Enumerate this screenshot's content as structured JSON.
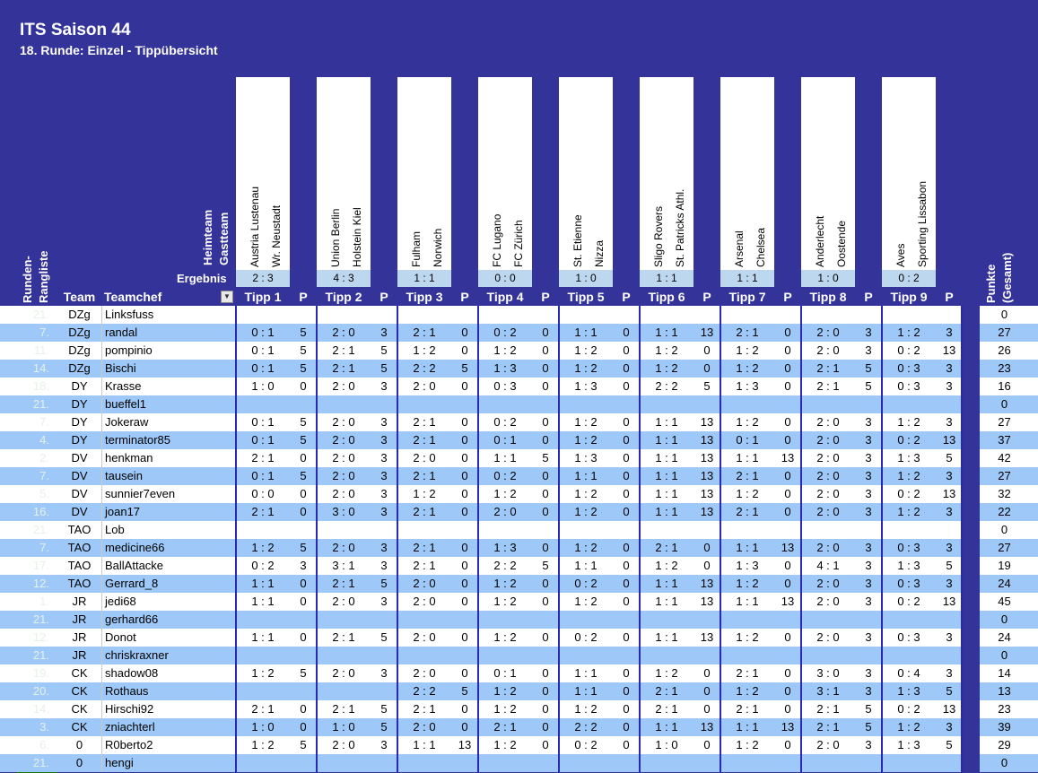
{
  "title": "ITS Saison 44",
  "subtitle": "18. Runde: Einzel - Tippübersicht",
  "header_labels": {
    "heimteam": "Heimteam",
    "gastteam": "Gastteam",
    "ergebnis": "Ergebnis",
    "rangliste": "Runden-\nRangliste",
    "team": "Team",
    "teamchef": "Teamchef",
    "p": "P",
    "punkte": "Punkte\n(Gesamt)"
  },
  "matches": [
    {
      "tipp": "Tipp 1",
      "home": "Austria Lustenau",
      "away": "Wr. Neustadt",
      "result": "2 : 3"
    },
    {
      "tipp": "Tipp 2",
      "home": "Union Berlin",
      "away": "Holstein Kiel",
      "result": "4 : 3"
    },
    {
      "tipp": "Tipp 3",
      "home": "Fulham",
      "away": "Norwich",
      "result": "1 : 1"
    },
    {
      "tipp": "Tipp 4",
      "home": "FC Lugano",
      "away": "FC Zürich",
      "result": "0 : 0"
    },
    {
      "tipp": "Tipp 5",
      "home": "St. Etienne",
      "away": "Nizza",
      "result": "1 : 0"
    },
    {
      "tipp": "Tipp 6",
      "home": "Sligo Rovers",
      "away": "St. Patricks Athl.",
      "result": "1 : 1"
    },
    {
      "tipp": "Tipp 7",
      "home": "Arsenal",
      "away": "Chelsea",
      "result": "1 : 1"
    },
    {
      "tipp": "Tipp 8",
      "home": "Anderlecht",
      "away": "Oostende",
      "result": "1 : 0"
    },
    {
      "tipp": "Tipp 9",
      "home": "Aves",
      "away": "Sporting Lissabon",
      "result": "0 : 2"
    }
  ],
  "rows": [
    {
      "rank": "21.",
      "team": "DZg",
      "chef": "Linksfuss",
      "tips": [
        "",
        "",
        "",
        "",
        "",
        "",
        "",
        "",
        ""
      ],
      "points": [
        "",
        "",
        "",
        "",
        "",
        "",
        "",
        "",
        ""
      ],
      "total": "0"
    },
    {
      "rank": "7.",
      "team": "DZg",
      "chef": "randal",
      "tips": [
        "0 : 1",
        "2 : 0",
        "2 : 1",
        "0 : 2",
        "1 : 1",
        "1 : 1",
        "2 : 1",
        "2 : 0",
        "1 : 2"
      ],
      "points": [
        "5",
        "3",
        "0",
        "0",
        "0",
        "13",
        "0",
        "3",
        "3"
      ],
      "total": "27"
    },
    {
      "rank": "11.",
      "team": "DZg",
      "chef": "pompinio",
      "tips": [
        "0 : 1",
        "2 : 1",
        "1 : 2",
        "1 : 2",
        "1 : 2",
        "1 : 2",
        "1 : 2",
        "2 : 0",
        "0 : 2"
      ],
      "points": [
        "5",
        "5",
        "0",
        "0",
        "0",
        "0",
        "0",
        "3",
        "13"
      ],
      "total": "26"
    },
    {
      "rank": "14.",
      "team": "DZg",
      "chef": "Bischi",
      "tips": [
        "0 : 1",
        "2 : 1",
        "2 : 2",
        "1 : 3",
        "1 : 2",
        "1 : 2",
        "1 : 2",
        "2 : 1",
        "0 : 3"
      ],
      "points": [
        "5",
        "5",
        "5",
        "0",
        "0",
        "0",
        "0",
        "5",
        "3"
      ],
      "total": "23"
    },
    {
      "rank": "18.",
      "team": "DY",
      "chef": "Krasse",
      "tips": [
        "1 : 0",
        "2 : 0",
        "2 : 0",
        "0 : 3",
        "1 : 3",
        "2 : 2",
        "1 : 3",
        "2 : 1",
        "0 : 3"
      ],
      "points": [
        "0",
        "3",
        "0",
        "0",
        "0",
        "5",
        "0",
        "5",
        "3"
      ],
      "total": "16"
    },
    {
      "rank": "21.",
      "team": "DY",
      "chef": "bueffel1",
      "tips": [
        "",
        "",
        "",
        "",
        "",
        "",
        "",
        "",
        ""
      ],
      "points": [
        "",
        "",
        "",
        "",
        "",
        "",
        "",
        "",
        ""
      ],
      "total": "0"
    },
    {
      "rank": "7.",
      "team": "DY",
      "chef": "Jokeraw",
      "tips": [
        "0 : 1",
        "2 : 0",
        "2 : 1",
        "0 : 2",
        "1 : 2",
        "1 : 1",
        "1 : 2",
        "2 : 0",
        "1 : 2"
      ],
      "points": [
        "5",
        "3",
        "0",
        "0",
        "0",
        "13",
        "0",
        "3",
        "3"
      ],
      "total": "27"
    },
    {
      "rank": "4.",
      "team": "DY",
      "chef": "terminator85",
      "tips": [
        "0 : 1",
        "2 : 0",
        "2 : 1",
        "0 : 1",
        "1 : 2",
        "1 : 1",
        "0 : 1",
        "2 : 0",
        "0 : 2"
      ],
      "points": [
        "5",
        "3",
        "0",
        "0",
        "0",
        "13",
        "0",
        "3",
        "13"
      ],
      "total": "37"
    },
    {
      "rank": "2.",
      "team": "DV",
      "chef": "henkman",
      "tips": [
        "2 : 1",
        "2 : 0",
        "2 : 0",
        "1 : 1",
        "1 : 3",
        "1 : 1",
        "1 : 1",
        "2 : 0",
        "1 : 3"
      ],
      "points": [
        "0",
        "3",
        "0",
        "5",
        "0",
        "13",
        "13",
        "3",
        "5"
      ],
      "total": "42"
    },
    {
      "rank": "7.",
      "team": "DV",
      "chef": "tausein",
      "tips": [
        "0 : 1",
        "2 : 0",
        "2 : 1",
        "0 : 2",
        "1 : 1",
        "1 : 1",
        "2 : 1",
        "2 : 0",
        "1 : 2"
      ],
      "points": [
        "5",
        "3",
        "0",
        "0",
        "0",
        "13",
        "0",
        "3",
        "3"
      ],
      "total": "27"
    },
    {
      "rank": "5.",
      "team": "DV",
      "chef": "sunnier7even",
      "tips": [
        "0 : 0",
        "2 : 0",
        "1 : 2",
        "1 : 2",
        "1 : 2",
        "1 : 1",
        "1 : 2",
        "2 : 0",
        "0 : 2"
      ],
      "points": [
        "0",
        "3",
        "0",
        "0",
        "0",
        "13",
        "0",
        "3",
        "13"
      ],
      "total": "32"
    },
    {
      "rank": "16.",
      "team": "DV",
      "chef": "joan17",
      "tips": [
        "2 : 1",
        "3 : 0",
        "2 : 1",
        "2 : 0",
        "1 : 2",
        "1 : 1",
        "2 : 1",
        "2 : 0",
        "1 : 2"
      ],
      "points": [
        "0",
        "3",
        "0",
        "0",
        "0",
        "13",
        "0",
        "3",
        "3"
      ],
      "total": "22"
    },
    {
      "rank": "21.",
      "team": "TAO",
      "chef": "Lob",
      "tips": [
        "",
        "",
        "",
        "",
        "",
        "",
        "",
        "",
        ""
      ],
      "points": [
        "",
        "",
        "",
        "",
        "",
        "",
        "",
        "",
        ""
      ],
      "total": "0"
    },
    {
      "rank": "7.",
      "team": "TAO",
      "chef": "medicine66",
      "tips": [
        "1 : 2",
        "2 : 0",
        "2 : 1",
        "1 : 3",
        "1 : 2",
        "2 : 1",
        "1 : 1",
        "2 : 0",
        "0 : 3"
      ],
      "points": [
        "5",
        "3",
        "0",
        "0",
        "0",
        "0",
        "13",
        "3",
        "3"
      ],
      "total": "27"
    },
    {
      "rank": "17.",
      "team": "TAO",
      "chef": "BallAttacke",
      "tips": [
        "0 : 2",
        "3 : 1",
        "2 : 1",
        "2 : 2",
        "1 : 1",
        "1 : 2",
        "1 : 3",
        "4 : 1",
        "1 : 3"
      ],
      "points": [
        "3",
        "3",
        "0",
        "5",
        "0",
        "0",
        "0",
        "3",
        "5"
      ],
      "total": "19"
    },
    {
      "rank": "12.",
      "team": "TAO",
      "chef": "Gerrard_8",
      "tips": [
        "1 : 1",
        "2 : 1",
        "2 : 0",
        "1 : 2",
        "0 : 2",
        "1 : 1",
        "1 : 2",
        "2 : 0",
        "0 : 3"
      ],
      "points": [
        "0",
        "5",
        "0",
        "0",
        "0",
        "13",
        "0",
        "3",
        "3"
      ],
      "total": "24"
    },
    {
      "rank": "1.",
      "team": "JR",
      "chef": "jedi68",
      "tips": [
        "1 : 1",
        "2 : 0",
        "2 : 0",
        "1 : 2",
        "1 : 2",
        "1 : 1",
        "1 : 1",
        "2 : 0",
        "0 : 2"
      ],
      "points": [
        "0",
        "3",
        "0",
        "0",
        "0",
        "13",
        "13",
        "3",
        "13"
      ],
      "total": "45"
    },
    {
      "rank": "21.",
      "team": "JR",
      "chef": "gerhard66",
      "tips": [
        "",
        "",
        "",
        "",
        "",
        "",
        "",
        "",
        ""
      ],
      "points": [
        "",
        "",
        "",
        "",
        "",
        "",
        "",
        "",
        ""
      ],
      "total": "0"
    },
    {
      "rank": "12.",
      "team": "JR",
      "chef": "Donot",
      "tips": [
        "1 : 1",
        "2 : 1",
        "2 : 0",
        "1 : 2",
        "0 : 2",
        "1 : 1",
        "1 : 2",
        "2 : 0",
        "0 : 3"
      ],
      "points": [
        "0",
        "5",
        "0",
        "0",
        "0",
        "13",
        "0",
        "3",
        "3"
      ],
      "total": "24"
    },
    {
      "rank": "21.",
      "team": "JR",
      "chef": "chriskraxner",
      "tips": [
        "",
        "",
        "",
        "",
        "",
        "",
        "",
        "",
        ""
      ],
      "points": [
        "",
        "",
        "",
        "",
        "",
        "",
        "",
        "",
        ""
      ],
      "total": "0"
    },
    {
      "rank": "19.",
      "team": "CK",
      "chef": "shadow08",
      "tips": [
        "1 : 2",
        "2 : 0",
        "2 : 0",
        "0 : 1",
        "1 : 1",
        "1 : 2",
        "2 : 1",
        "3 : 0",
        "0 : 4"
      ],
      "points": [
        "5",
        "3",
        "0",
        "0",
        "0",
        "0",
        "0",
        "3",
        "3"
      ],
      "total": "14"
    },
    {
      "rank": "20.",
      "team": "CK",
      "chef": "Rothaus",
      "tips": [
        "",
        "",
        "2 : 2",
        "1 : 2",
        "1 : 1",
        "2 : 1",
        "1 : 2",
        "3 : 1",
        "1 : 3"
      ],
      "points": [
        "",
        "",
        "5",
        "0",
        "0",
        "0",
        "0",
        "3",
        "5"
      ],
      "total": "13"
    },
    {
      "rank": "14.",
      "team": "CK",
      "chef": "Hirschi92",
      "tips": [
        "2 : 1",
        "2 : 1",
        "2 : 1",
        "1 : 2",
        "1 : 2",
        "2 : 1",
        "2 : 1",
        "2 : 1",
        "0 : 2"
      ],
      "points": [
        "0",
        "5",
        "0",
        "0",
        "0",
        "0",
        "0",
        "5",
        "13"
      ],
      "total": "23"
    },
    {
      "rank": "3.",
      "team": "CK",
      "chef": "zniachterl",
      "tips": [
        "1 : 0",
        "1 : 0",
        "2 : 0",
        "2 : 1",
        "2 : 2",
        "1 : 1",
        "1 : 1",
        "2 : 1",
        "1 : 2"
      ],
      "points": [
        "0",
        "5",
        "0",
        "0",
        "0",
        "13",
        "13",
        "5",
        "3"
      ],
      "total": "39"
    },
    {
      "rank": "6.",
      "team": "0",
      "chef": "R0berto2",
      "tips": [
        "1 : 2",
        "2 : 0",
        "1 : 1",
        "1 : 2",
        "0 : 2",
        "1 : 0",
        "1 : 2",
        "2 : 0",
        "1 : 3"
      ],
      "points": [
        "5",
        "3",
        "13",
        "0",
        "0",
        "0",
        "0",
        "3",
        "5"
      ],
      "total": "29"
    },
    {
      "rank": "21.",
      "team": "0",
      "chef": "hengi",
      "tips": [
        "",
        "",
        "",
        "",
        "",
        "",
        "",
        "",
        ""
      ],
      "points": [
        "",
        "",
        "",
        "",
        "",
        "",
        "",
        "",
        ""
      ],
      "total": "0"
    }
  ]
}
